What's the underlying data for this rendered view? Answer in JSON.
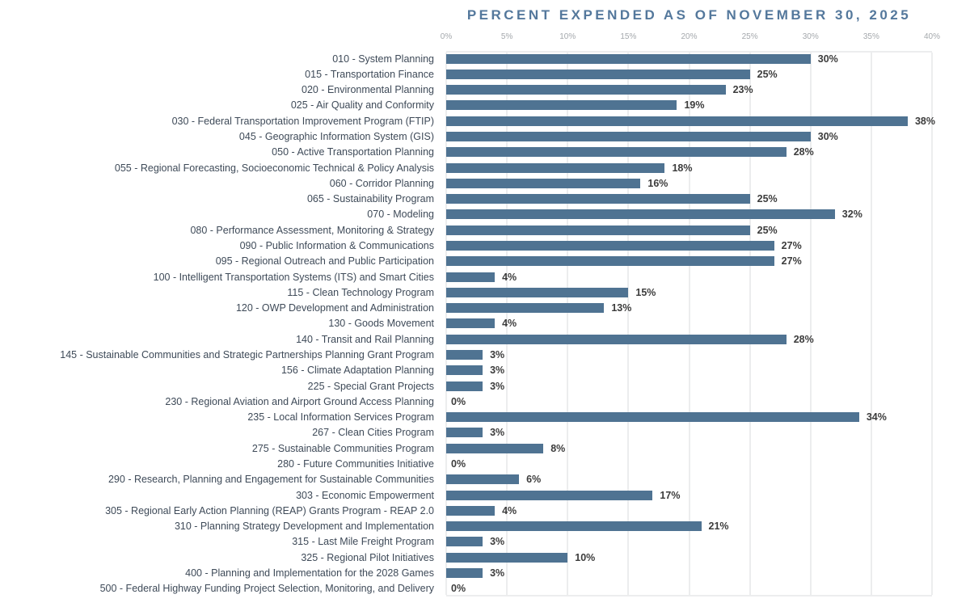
{
  "chart_data": {
    "type": "bar",
    "orientation": "horizontal",
    "title": "PERCENT EXPENDED AS OF NOVEMBER 30, 2025",
    "xlabel": "",
    "ylabel": "",
    "xlim": [
      0,
      40
    ],
    "x_ticks": [
      "0%",
      "5%",
      "10%",
      "15%",
      "20%",
      "25%",
      "30%",
      "35%",
      "40%"
    ],
    "grid": "vertical",
    "legend": "none",
    "categories": [
      "010 - System Planning",
      "015 - Transportation Finance",
      "020 - Environmental Planning",
      "025 - Air Quality and Conformity",
      "030 - Federal Transportation Improvement Program (FTIP)",
      "045 - Geographic Information System (GIS)",
      "050 - Active Transportation Planning",
      "055 - Regional Forecasting, Socioeconomic Technical & Policy Analysis",
      "060 - Corridor Planning",
      "065 - Sustainability Program",
      "070 - Modeling",
      "080 - Performance Assessment, Monitoring & Strategy",
      "090 - Public Information & Communications",
      "095 - Regional Outreach and Public Participation",
      "100 - Intelligent Transportation Systems (ITS) and Smart Cities",
      "115 - Clean Technology Program",
      "120 - OWP Development and Administration",
      "130 - Goods Movement",
      "140 - Transit and Rail Planning",
      "145 - Sustainable Communities and Strategic Partnerships Planning Grant Program",
      "156 - Climate Adaptation Planning",
      "225 - Special Grant Projects",
      "230 - Regional Aviation and Airport Ground Access Planning",
      "235 - Local Information Services Program",
      "267 - Clean Cities Program",
      "275 - Sustainable Communities Program",
      "280 - Future Communities Initiative",
      "290 - Research, Planning and Engagement for Sustainable Communities",
      "303 - Economic Empowerment",
      "305 - Regional Early Action Planning (REAP) Grants Program - REAP 2.0",
      "310 - Planning Strategy Development and Implementation",
      "315 - Last Mile Freight Program",
      "325 - Regional Pilot Initiatives",
      "400 - Planning and Implementation for the 2028 Games",
      "500 - Federal Highway Funding Project Selection, Monitoring, and Delivery"
    ],
    "values": [
      30,
      25,
      23,
      19,
      38,
      30,
      28,
      18,
      16,
      25,
      32,
      25,
      27,
      27,
      4,
      15,
      13,
      4,
      28,
      3,
      3,
      3,
      0,
      34,
      3,
      8,
      0,
      6,
      17,
      4,
      21,
      3,
      10,
      3,
      0
    ],
    "value_label_suffix": "%",
    "colors": {
      "bar": "#4f7392",
      "title": "#54789c",
      "category_label": "#3e4a58",
      "value_label": "#3c3c3c",
      "tick_label": "#a4a8ac",
      "gridline": "#ecedee",
      "background": "#ffffff"
    }
  }
}
